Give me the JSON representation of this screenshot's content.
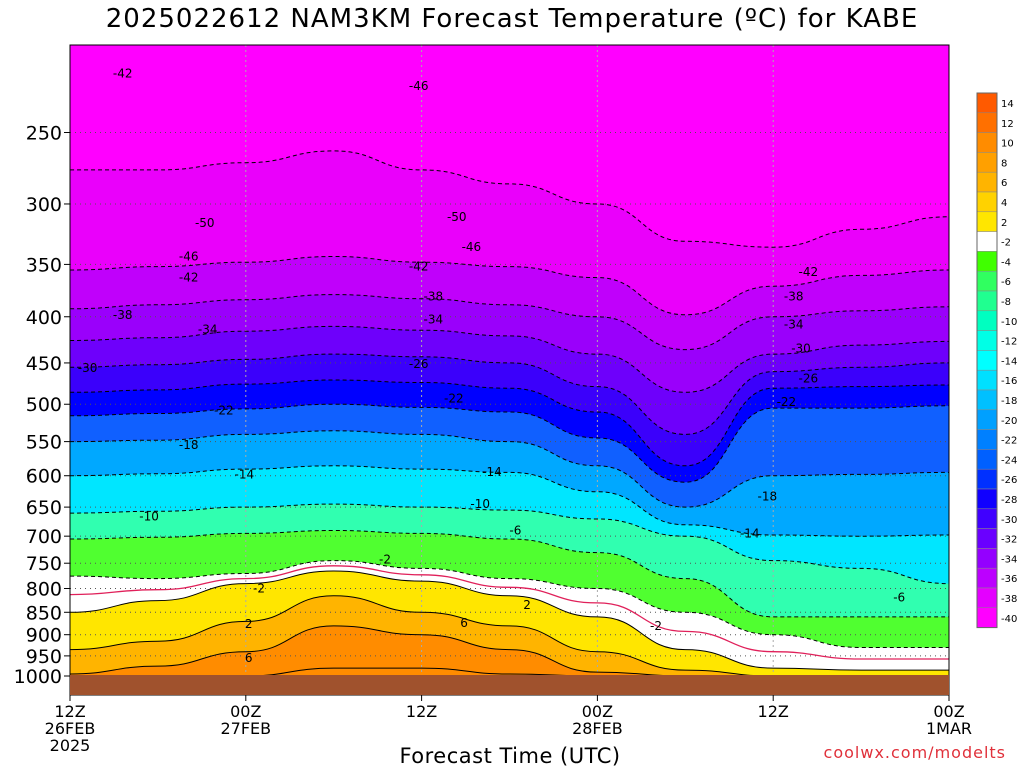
{
  "title": "2025022612 NAM3KM Forecast Temperature (ºC) for KABE",
  "credit": "coolwx.com/modelts",
  "colors": {
    "ground": "#a0522d",
    "freezing_line": "#e0205a",
    "contour": "#000000",
    "top_band": "#ff00ff"
  },
  "chart_data": {
    "type": "heatmap",
    "title": "2025022612 NAM3KM Forecast Temperature (ºC) for KABE",
    "xlabel": "Forecast Time (UTC)",
    "ylabel": "",
    "y_scale": "log-pressure",
    "ylim": [
      1000,
      200
    ],
    "y_ticks": [
      "250",
      "300",
      "350",
      "400",
      "450",
      "500",
      "550",
      "600",
      "650",
      "700",
      "750",
      "800",
      "850",
      "900",
      "950",
      "1000"
    ],
    "x_ticks": [
      {
        "l1": "12Z",
        "l2": "26FEB",
        "l3": "2025"
      },
      {
        "l1": "00Z",
        "l2": "27FEB",
        "l3": ""
      },
      {
        "l1": "12Z",
        "l2": "",
        "l3": ""
      },
      {
        "l1": "00Z",
        "l2": "28FEB",
        "l3": ""
      },
      {
        "l1": "12Z",
        "l2": "",
        "l3": ""
      },
      {
        "l1": "00Z",
        "l2": "1MAR",
        "l3": ""
      }
    ],
    "forecast_hours": [
      0,
      6,
      12,
      18,
      24,
      30,
      36,
      42,
      48,
      54,
      60
    ],
    "isotherm_pressures_hpa": [
      {
        "t": -46,
        "p": [
          275,
          275,
          270,
          262,
          275,
          285,
          300,
          330,
          335,
          320,
          310
        ]
      },
      {
        "t": -42,
        "p": [
          355,
          352,
          348,
          343,
          348,
          352,
          362,
          398,
          370,
          360,
          355
        ]
      },
      {
        "t": -38,
        "p": [
          392,
          388,
          383,
          378,
          382,
          388,
          400,
          435,
          400,
          394,
          390
        ]
      },
      {
        "t": -34,
        "p": [
          425,
          422,
          415,
          410,
          414,
          420,
          440,
          485,
          440,
          430,
          426
        ]
      },
      {
        "t": -30,
        "p": [
          455,
          452,
          446,
          440,
          443,
          450,
          478,
          540,
          460,
          455,
          450
        ]
      },
      {
        "t": -26,
        "p": [
          485,
          482,
          475,
          470,
          473,
          480,
          510,
          585,
          480,
          478,
          476
        ]
      },
      {
        "t": -22,
        "p": [
          515,
          512,
          506,
          500,
          504,
          510,
          545,
          610,
          505,
          505,
          502
        ]
      },
      {
        "t": -18,
        "p": [
          550,
          548,
          540,
          535,
          540,
          550,
          585,
          650,
          600,
          598,
          595
        ]
      },
      {
        "t": -14,
        "p": [
          600,
          597,
          590,
          585,
          590,
          595,
          625,
          680,
          698,
          700,
          698
        ]
      },
      {
        "t": -10,
        "p": [
          660,
          657,
          650,
          645,
          650,
          655,
          670,
          700,
          745,
          760,
          790
        ]
      },
      {
        "t": -6,
        "p": [
          705,
          702,
          695,
          690,
          695,
          705,
          730,
          780,
          860,
          860,
          860
        ]
      },
      {
        "t": -2,
        "p": [
          775,
          780,
          770,
          745,
          760,
          780,
          800,
          850,
          900,
          930,
          930
        ]
      },
      {
        "t": 2,
        "p": [
          850,
          825,
          790,
          765,
          785,
          815,
          860,
          935,
          980,
          985,
          985
        ]
      },
      {
        "t": 6,
        "p": [
          935,
          915,
          870,
          815,
          850,
          880,
          940,
          985,
          1000,
          1000,
          1000
        ]
      },
      {
        "t": 10,
        "p": [
          995,
          975,
          940,
          880,
          900,
          935,
          990,
          1000,
          1000,
          1000,
          1000
        ]
      },
      {
        "t": 14,
        "p": [
          1000,
          1000,
          1000,
          980,
          980,
          995,
          1000,
          1000,
          1000,
          1000,
          1000
        ]
      }
    ],
    "contour_labels": [
      {
        "text": "-42",
        "fh": 3.6,
        "p": 215
      },
      {
        "text": "-46",
        "fh": 23.8,
        "p": 222
      },
      {
        "text": "-50",
        "fh": 9.2,
        "p": 315
      },
      {
        "text": "-50",
        "fh": 26.4,
        "p": 310
      },
      {
        "text": "-46",
        "fh": 8.1,
        "p": 343
      },
      {
        "text": "-46",
        "fh": 27.4,
        "p": 335
      },
      {
        "text": "-42",
        "fh": 8.1,
        "p": 362
      },
      {
        "text": "-42",
        "fh": 23.8,
        "p": 352
      },
      {
        "text": "-42",
        "fh": 50.4,
        "p": 357
      },
      {
        "text": "-38",
        "fh": 3.6,
        "p": 398
      },
      {
        "text": "-38",
        "fh": 24.8,
        "p": 380
      },
      {
        "text": "-38",
        "fh": 49.4,
        "p": 380
      },
      {
        "text": "-34",
        "fh": 9.4,
        "p": 413
      },
      {
        "text": "-34",
        "fh": 24.8,
        "p": 403
      },
      {
        "text": "-34",
        "fh": 49.4,
        "p": 408
      },
      {
        "text": "-30",
        "fh": 1.2,
        "p": 456
      },
      {
        "text": "-30",
        "fh": 49.9,
        "p": 434
      },
      {
        "text": "-26",
        "fh": 23.8,
        "p": 451
      },
      {
        "text": "-26",
        "fh": 50.4,
        "p": 468
      },
      {
        "text": "-22",
        "fh": 10.5,
        "p": 508
      },
      {
        "text": "-22",
        "fh": 26.2,
        "p": 493
      },
      {
        "text": "-22",
        "fh": 48.9,
        "p": 497
      },
      {
        "text": "-18",
        "fh": 8.1,
        "p": 555
      },
      {
        "text": "-18",
        "fh": 47.6,
        "p": 633
      },
      {
        "text": "-14",
        "fh": 11.9,
        "p": 598
      },
      {
        "text": "-14",
        "fh": 28.8,
        "p": 594
      },
      {
        "text": "-14",
        "fh": 46.4,
        "p": 695
      },
      {
        "text": "-10",
        "fh": 5.4,
        "p": 666
      },
      {
        "text": "-10",
        "fh": 28.0,
        "p": 645
      },
      {
        "text": "-6",
        "fh": 30.4,
        "p": 690
      },
      {
        "text": "-6",
        "fh": 56.6,
        "p": 819
      },
      {
        "text": "-2",
        "fh": 21.5,
        "p": 743
      },
      {
        "text": "-2",
        "fh": 12.9,
        "p": 800
      },
      {
        "text": "-2",
        "fh": 40.0,
        "p": 880
      },
      {
        "text": "2",
        "fh": 12.2,
        "p": 876
      },
      {
        "text": "2",
        "fh": 31.2,
        "p": 834
      },
      {
        "text": "6",
        "fh": 12.2,
        "p": 955
      },
      {
        "text": "6",
        "fh": 26.9,
        "p": 874
      }
    ],
    "colorbar_labels": [
      "14",
      "12",
      "10",
      "8",
      "6",
      "4",
      "2",
      "-2",
      "-4",
      "-6",
      "-8",
      "-10",
      "-12",
      "-14",
      "-16",
      "-18",
      "-20",
      "-22",
      "-24",
      "-26",
      "-28",
      "-30",
      "-32",
      "-34",
      "-36",
      "-38",
      "-40"
    ]
  }
}
